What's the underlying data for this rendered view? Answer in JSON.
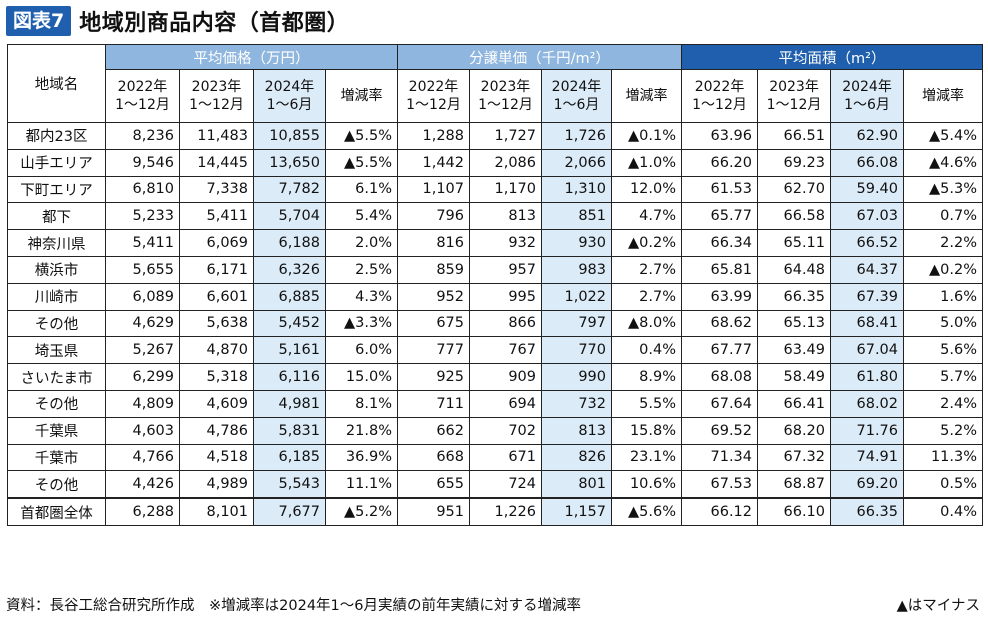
{
  "title": {
    "badge": "図表7",
    "text": "地域別商品内容（首都圏）"
  },
  "table": {
    "corner": "地域名",
    "groups": [
      "平均価格（万円）",
      "分譲単価（千円/m²）",
      "平均面積（m²）"
    ],
    "periods": [
      {
        "l1": "2022年",
        "l2": "1〜12月"
      },
      {
        "l1": "2023年",
        "l2": "1〜12月"
      },
      {
        "l1": "2024年",
        "l2": "1〜6月"
      },
      {
        "l1": "増減率",
        "l2": ""
      }
    ],
    "rows": [
      {
        "name": "都内23区",
        "price": [
          "8,236",
          "11,483",
          "10,855",
          "▲5.5%"
        ],
        "unit": [
          "1,288",
          "1,727",
          "1,726",
          "▲0.1%"
        ],
        "area": [
          "63.96",
          "66.51",
          "62.90",
          "▲5.4%"
        ]
      },
      {
        "name": "山手エリア",
        "price": [
          "9,546",
          "14,445",
          "13,650",
          "▲5.5%"
        ],
        "unit": [
          "1,442",
          "2,086",
          "2,066",
          "▲1.0%"
        ],
        "area": [
          "66.20",
          "69.23",
          "66.08",
          "▲4.6%"
        ]
      },
      {
        "name": "下町エリア",
        "price": [
          "6,810",
          "7,338",
          "7,782",
          "6.1%"
        ],
        "unit": [
          "1,107",
          "1,170",
          "1,310",
          "12.0%"
        ],
        "area": [
          "61.53",
          "62.70",
          "59.40",
          "▲5.3%"
        ]
      },
      {
        "name": "都下",
        "price": [
          "5,233",
          "5,411",
          "5,704",
          "5.4%"
        ],
        "unit": [
          "796",
          "813",
          "851",
          "4.7%"
        ],
        "area": [
          "65.77",
          "66.58",
          "67.03",
          "0.7%"
        ]
      },
      {
        "name": "神奈川県",
        "price": [
          "5,411",
          "6,069",
          "6,188",
          "2.0%"
        ],
        "unit": [
          "816",
          "932",
          "930",
          "▲0.2%"
        ],
        "area": [
          "66.34",
          "65.11",
          "66.52",
          "2.2%"
        ]
      },
      {
        "name": "横浜市",
        "price": [
          "5,655",
          "6,171",
          "6,326",
          "2.5%"
        ],
        "unit": [
          "859",
          "957",
          "983",
          "2.7%"
        ],
        "area": [
          "65.81",
          "64.48",
          "64.37",
          "▲0.2%"
        ]
      },
      {
        "name": "川崎市",
        "price": [
          "6,089",
          "6,601",
          "6,885",
          "4.3%"
        ],
        "unit": [
          "952",
          "995",
          "1,022",
          "2.7%"
        ],
        "area": [
          "63.99",
          "66.35",
          "67.39",
          "1.6%"
        ]
      },
      {
        "name": "その他",
        "price": [
          "4,629",
          "5,638",
          "5,452",
          "▲3.3%"
        ],
        "unit": [
          "675",
          "866",
          "797",
          "▲8.0%"
        ],
        "area": [
          "68.62",
          "65.13",
          "68.41",
          "5.0%"
        ]
      },
      {
        "name": "埼玉県",
        "price": [
          "5,267",
          "4,870",
          "5,161",
          "6.0%"
        ],
        "unit": [
          "777",
          "767",
          "770",
          "0.4%"
        ],
        "area": [
          "67.77",
          "63.49",
          "67.04",
          "5.6%"
        ]
      },
      {
        "name": "さいたま市",
        "price": [
          "6,299",
          "5,318",
          "6,116",
          "15.0%"
        ],
        "unit": [
          "925",
          "909",
          "990",
          "8.9%"
        ],
        "area": [
          "68.08",
          "58.49",
          "61.80",
          "5.7%"
        ]
      },
      {
        "name": "その他",
        "price": [
          "4,809",
          "4,609",
          "4,981",
          "8.1%"
        ],
        "unit": [
          "711",
          "694",
          "732",
          "5.5%"
        ],
        "area": [
          "67.64",
          "66.41",
          "68.02",
          "2.4%"
        ]
      },
      {
        "name": "千葉県",
        "price": [
          "4,603",
          "4,786",
          "5,831",
          "21.8%"
        ],
        "unit": [
          "662",
          "702",
          "813",
          "15.8%"
        ],
        "area": [
          "69.52",
          "68.20",
          "71.76",
          "5.2%"
        ]
      },
      {
        "name": "千葉市",
        "price": [
          "4,766",
          "4,518",
          "6,185",
          "36.9%"
        ],
        "unit": [
          "668",
          "671",
          "826",
          "23.1%"
        ],
        "area": [
          "71.34",
          "67.32",
          "74.91",
          "11.3%"
        ]
      },
      {
        "name": "その他",
        "price": [
          "4,426",
          "4,989",
          "5,543",
          "11.1%"
        ],
        "unit": [
          "655",
          "724",
          "801",
          "10.6%"
        ],
        "area": [
          "67.53",
          "68.87",
          "69.20",
          "0.5%"
        ]
      },
      {
        "name": "首都圏全体",
        "price": [
          "6,288",
          "8,101",
          "7,677",
          "▲5.2%"
        ],
        "unit": [
          "951",
          "1,226",
          "1,157",
          "▲5.6%"
        ],
        "area": [
          "66.12",
          "66.10",
          "66.35",
          "0.4%"
        ]
      }
    ]
  },
  "footer": {
    "source": "資料：長谷工総合研究所作成　※増減率は2024年1〜6月実績の前年実績に対する増減率",
    "legend": "▲はマイナス"
  }
}
